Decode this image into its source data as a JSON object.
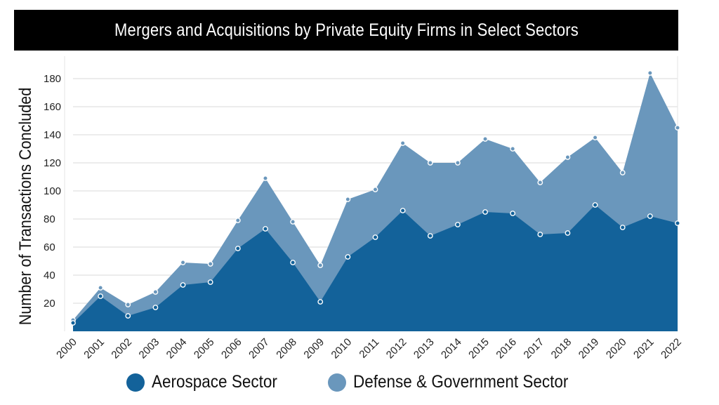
{
  "chart_data": {
    "type": "area",
    "title": "Mergers and Acquisitions by Private Equity Firms in Select Sectors",
    "ylabel": "Number of Transactions Concluded",
    "xlabel": "",
    "ylim": [
      0,
      190
    ],
    "yticks": [
      20,
      40,
      60,
      80,
      100,
      120,
      140,
      160,
      180
    ],
    "grid": true,
    "stacked": true,
    "legend_position": "bottom",
    "categories": [
      "2000",
      "2001",
      "2002",
      "2003",
      "2004",
      "2005",
      "2006",
      "2007",
      "2008",
      "2009",
      "2010",
      "2011",
      "2012",
      "2013",
      "2014",
      "2015",
      "2016",
      "2017",
      "2018",
      "2019",
      "2020",
      "2021",
      "2022"
    ],
    "series": [
      {
        "name": "Aerospace Sector",
        "color": "#13629a",
        "values": [
          6,
          25,
          11,
          17,
          33,
          35,
          59,
          73,
          49,
          21,
          53,
          67,
          86,
          68,
          76,
          85,
          84,
          69,
          70,
          90,
          74,
          82,
          77
        ]
      },
      {
        "name": "Defense & Government Sector",
        "color": "#6a97bc",
        "totals": [
          8,
          31,
          19,
          28,
          49,
          48,
          79,
          109,
          78,
          47,
          94,
          101,
          134,
          120,
          120,
          137,
          130,
          106,
          124,
          138,
          113,
          184,
          145
        ]
      }
    ]
  }
}
